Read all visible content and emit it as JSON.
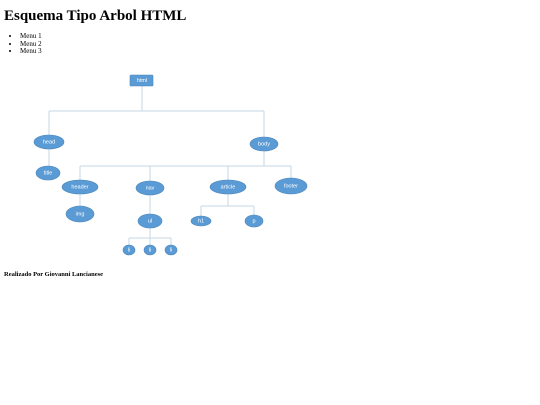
{
  "header": {
    "title": "Esquema Tipo Arbol HTML"
  },
  "menu": {
    "items": [
      "Menu 1",
      "Menu 2",
      "Menu 3"
    ]
  },
  "tree": {
    "nodes": [
      "html",
      "head",
      "body",
      "title",
      "header",
      "nav",
      "article",
      "footer",
      "img",
      "ul",
      "h1",
      "p",
      "li",
      "li",
      "li"
    ]
  },
  "footer": {
    "text": "Realizado Por Giovanni Lancianese"
  }
}
